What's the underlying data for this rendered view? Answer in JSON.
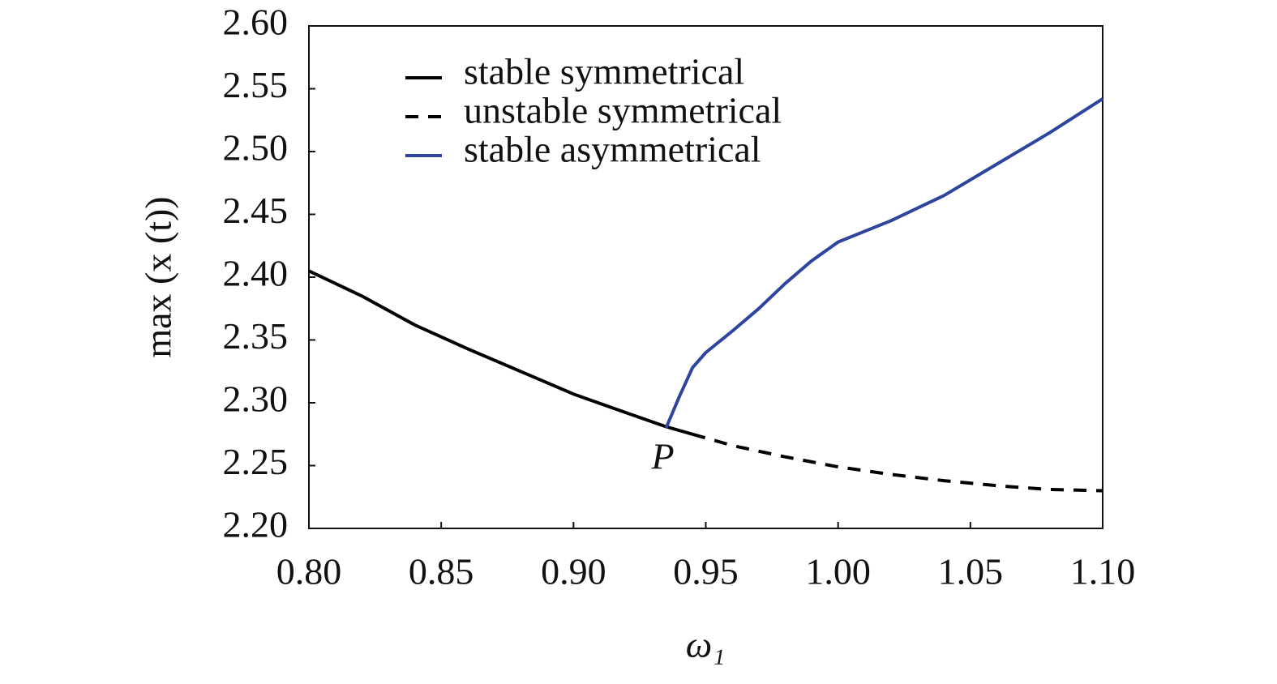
{
  "chart_data": {
    "type": "line",
    "xlabel": "ω₁",
    "ylabel": "max (x (t))",
    "annotation": "P",
    "xlim": [
      0.8,
      1.1
    ],
    "ylim": [
      2.2,
      2.6
    ],
    "xticks": [
      {
        "value": 0.8,
        "label": "0.80"
      },
      0.85,
      {
        "value": 0.9,
        "label": "0.90"
      },
      0.95,
      {
        "value": 1.0,
        "label": "1.00"
      },
      1.05,
      {
        "value": 1.1,
        "label": "1.10"
      }
    ],
    "yticks": [
      {
        "value": 2.2,
        "label": "2.20"
      },
      2.25,
      {
        "value": 2.3,
        "label": "2.30"
      },
      2.35,
      {
        "value": 2.4,
        "label": "2.40"
      },
      2.45,
      {
        "value": 2.5,
        "label": "2.50"
      },
      2.55,
      {
        "value": 2.6,
        "label": "2.60"
      }
    ],
    "grid": false,
    "legend": "upper left",
    "series": [
      {
        "name": "stable symmetrical",
        "color": "#000000",
        "line_style": "solid",
        "x": [
          0.8,
          0.82,
          0.84,
          0.86,
          0.88,
          0.9,
          0.92,
          0.935,
          0.945
        ],
        "values": [
          2.405,
          2.385,
          2.362,
          2.343,
          2.325,
          2.307,
          2.292,
          2.281,
          2.275
        ]
      },
      {
        "name": "unstable symmetrical",
        "color": "#000000",
        "line_style": "dashed",
        "x": [
          0.945,
          0.96,
          0.98,
          1.0,
          1.02,
          1.04,
          1.06,
          1.08,
          1.1
        ],
        "values": [
          2.275,
          2.266,
          2.257,
          2.249,
          2.243,
          2.238,
          2.234,
          2.231,
          2.23
        ]
      },
      {
        "name": "stable asymmetrical",
        "color": "#2e45a0",
        "line_style": "solid",
        "x": [
          0.935,
          0.94,
          0.945,
          0.95,
          0.96,
          0.97,
          0.98,
          0.99,
          1.0,
          1.02,
          1.04,
          1.06,
          1.08,
          1.1
        ],
        "values": [
          2.28,
          2.305,
          2.328,
          2.34,
          2.357,
          2.375,
          2.395,
          2.413,
          2.428,
          2.445,
          2.465,
          2.49,
          2.515,
          2.542
        ]
      }
    ]
  }
}
